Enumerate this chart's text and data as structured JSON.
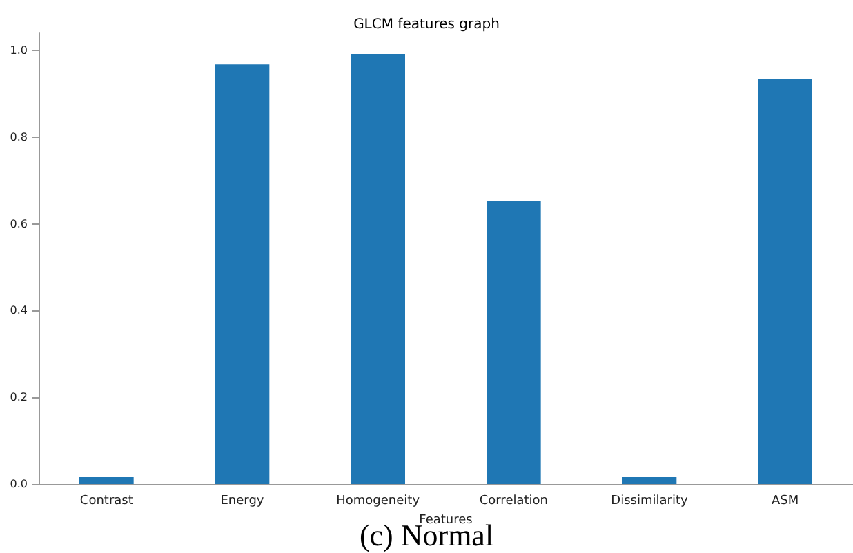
{
  "chart_data": {
    "type": "bar",
    "title": "GLCM features graph",
    "xlabel": "Features",
    "categories": [
      "Contrast",
      "Energy",
      "Homogeneity",
      "Correlation",
      "Dissimilarity",
      "ASM"
    ],
    "values": [
      0.016,
      0.968,
      0.992,
      0.652,
      0.016,
      0.935
    ],
    "color": "#1f77b4",
    "ylim": [
      0,
      1.04
    ],
    "yticks": [
      {
        "value": 0,
        "label": "0.0"
      },
      {
        "value": 0.2,
        "label": "0.2"
      },
      {
        "value": 0.4,
        "label": "0.4"
      },
      {
        "value": 0.6,
        "label": "0.6"
      },
      {
        "value": 0.8,
        "label": "0.8"
      },
      {
        "value": 1,
        "label": "1.0"
      }
    ],
    "grid": false,
    "annotations": [
      "(c) Normal"
    ]
  }
}
